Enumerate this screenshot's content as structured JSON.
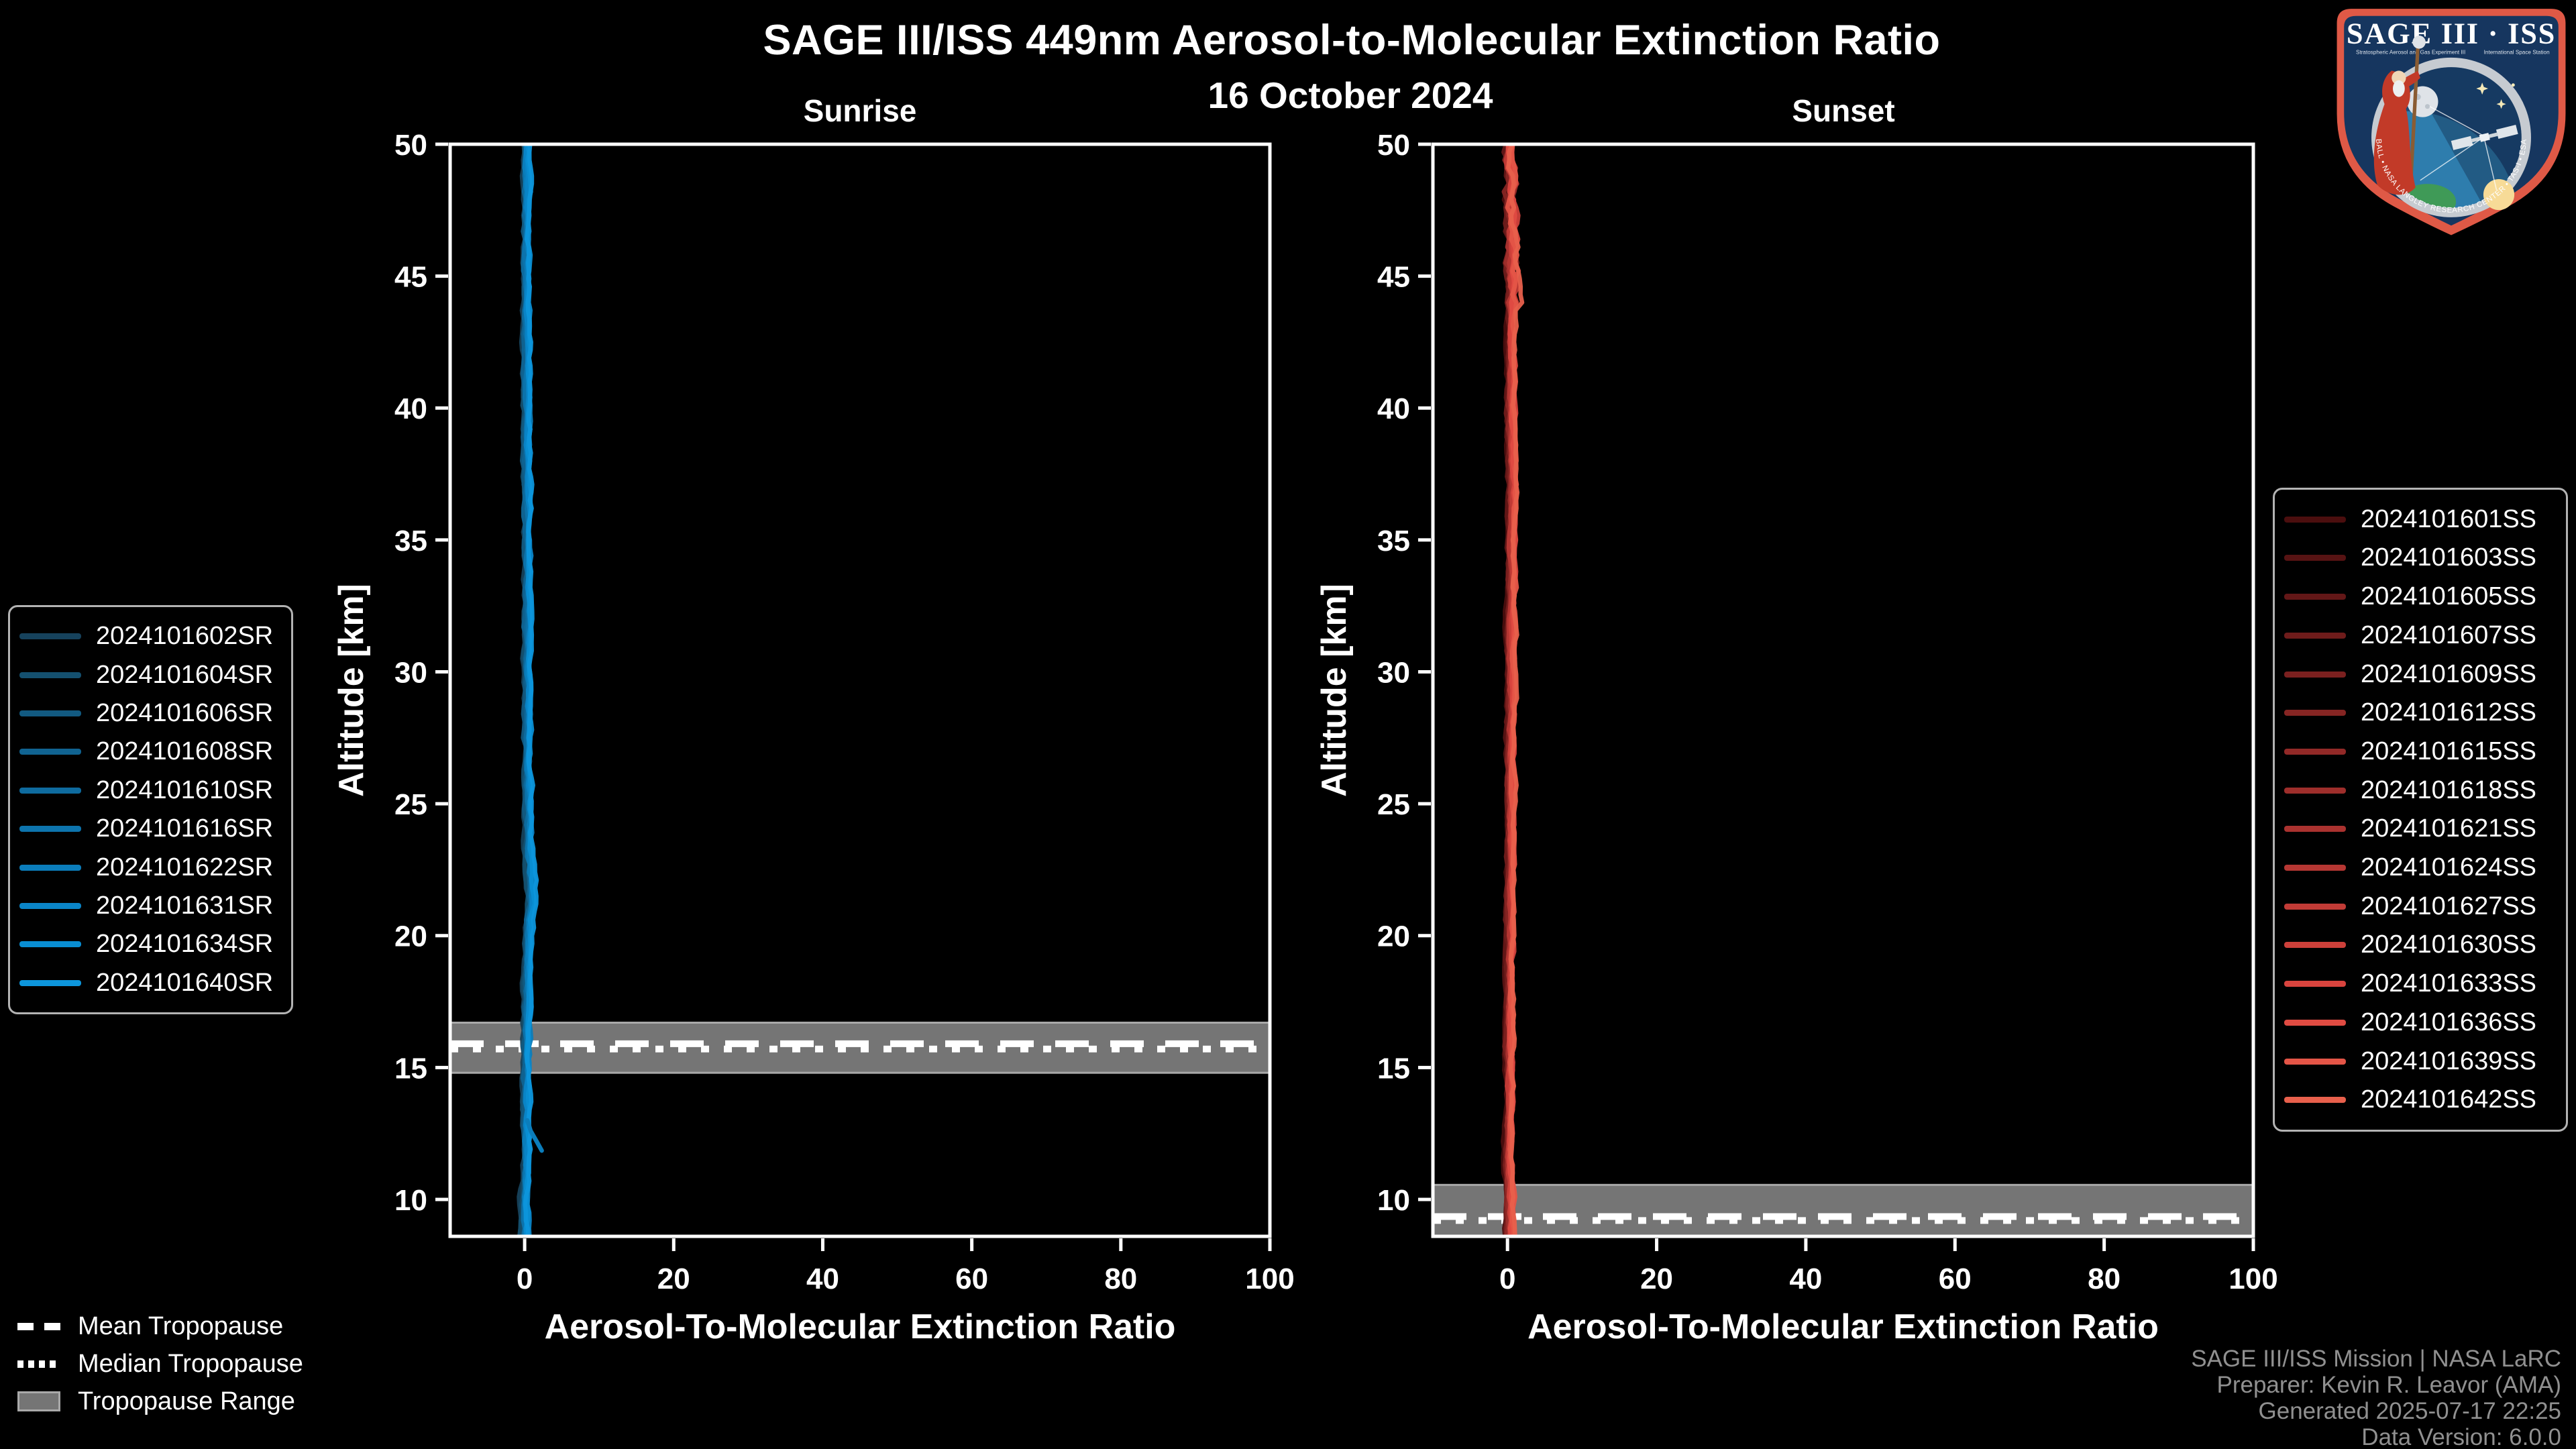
{
  "title": "SAGE III/ISS 449nm Aerosol-to-Molecular Extinction Ratio",
  "date": "16 October 2024",
  "attribution": {
    "line1": "SAGE III/ISS Mission | NASA LaRC",
    "line2": "Preparer: Kevin R. Leavor (AMA)",
    "line3": "Generated 2025-07-17 22:25",
    "line4": "Data Version: 6.0.0"
  },
  "tropopause_legend": [
    {
      "label": "Mean Tropopause",
      "style": "dashed"
    },
    {
      "label": "Median Tropopause",
      "style": "dotted"
    },
    {
      "label": "Tropopause Range",
      "style": "band"
    }
  ],
  "logo": {
    "title": "SAGE III · ISS",
    "subtitle_left": "Stratospheric Aerosol and Gas Experiment III",
    "subtitle_right": "International Space Station",
    "arc_text": "BALL • NASA LANGLEY RESEARCH CENTER • TAS-I • ESA",
    "border_color": "#df5946",
    "field_color": "#16365f"
  },
  "colors": {
    "background": "#000000",
    "text": "#ffffff",
    "muted_text": "#909090",
    "frame": "#ffffff",
    "band_fill": "#757575",
    "band_edge": "#a9a9a9",
    "legend_border": "#b3b3b3",
    "sunrise_bright": "#0d96dc",
    "sunset_bright": "#e8604c"
  },
  "chart_data": [
    {
      "type": "line",
      "panel_title": "Sunrise",
      "xlabel": "Aerosol-To-Molecular Extinction Ratio",
      "ylabel": "Altitude [km]",
      "xlim": [
        -10,
        100
      ],
      "ylim": [
        8.6,
        50
      ],
      "xticks": [
        0,
        20,
        40,
        60,
        80,
        100
      ],
      "yticks": [
        10,
        15,
        20,
        25,
        30,
        35,
        40,
        45,
        50
      ],
      "grid": false,
      "legend_position": "outside-left",
      "series": [
        {
          "name": "2024101602SR",
          "color": "#16425c"
        },
        {
          "name": "2024101604SR",
          "color": "#14506f"
        },
        {
          "name": "2024101606SR",
          "color": "#125a81"
        },
        {
          "name": "2024101608SR",
          "color": "#106391"
        },
        {
          "name": "2024101610SR",
          "color": "#0e6b9f"
        },
        {
          "name": "2024101616SR",
          "color": "#0d74ad"
        },
        {
          "name": "2024101622SR",
          "color": "#0b7dbb"
        },
        {
          "name": "2024101631SR",
          "color": "#0a85c8"
        },
        {
          "name": "2024101634SR",
          "color": "#098ed3"
        },
        {
          "name": "2024101640SR",
          "color": "#0d96dc"
        }
      ],
      "base_profile": {
        "altitude_km": [
          50,
          48,
          46,
          44,
          42,
          40,
          38,
          36,
          34,
          32,
          30,
          28,
          26,
          24,
          23,
          22,
          21.3,
          20.7,
          20,
          19,
          18,
          17,
          16,
          15,
          14,
          13,
          12.5,
          12,
          11,
          10.3,
          10,
          9.5,
          9,
          8.6
        ],
        "ratio": [
          0.2,
          0.2,
          0.25,
          0.25,
          0.3,
          0.3,
          0.3,
          0.35,
          0.35,
          0.4,
          0.4,
          0.45,
          0.45,
          0.5,
          0.55,
          0.8,
          0.9,
          0.6,
          0.45,
          0.35,
          0.3,
          0.25,
          0.25,
          0.2,
          0.2,
          0.25,
          0.3,
          0.25,
          0.2,
          0.0,
          -0.1,
          0.1,
          0.05,
          0.0
        ]
      },
      "branch_profile": {
        "series_index": 6,
        "altitude_km": [
          13.0,
          12.6,
          12.2,
          11.85
        ],
        "ratio": [
          0.35,
          0.8,
          1.6,
          2.3
        ]
      },
      "tropopause": {
        "mean_km": 15.9,
        "median_km": 15.7,
        "range_km": [
          14.8,
          16.7
        ]
      }
    },
    {
      "type": "line",
      "panel_title": "Sunset",
      "xlabel": "Aerosol-To-Molecular Extinction Ratio",
      "ylabel": "Altitude [km]",
      "xlim": [
        -10,
        100
      ],
      "ylim": [
        8.6,
        50
      ],
      "xticks": [
        0,
        20,
        40,
        60,
        80,
        100
      ],
      "yticks": [
        10,
        15,
        20,
        25,
        30,
        35,
        40,
        45,
        50
      ],
      "grid": false,
      "legend_position": "outside-right",
      "series": [
        {
          "name": "2024101601SS",
          "color": "#4b0e0e"
        },
        {
          "name": "2024101603SS",
          "color": "#571313"
        },
        {
          "name": "2024101605SS",
          "color": "#631717"
        },
        {
          "name": "2024101607SS",
          "color": "#6f1c1b"
        },
        {
          "name": "2024101609SS",
          "color": "#7b201f"
        },
        {
          "name": "2024101612SS",
          "color": "#862523"
        },
        {
          "name": "2024101615SS",
          "color": "#922927"
        },
        {
          "name": "2024101618SS",
          "color": "#9e2e2b"
        },
        {
          "name": "2024101621SS",
          "color": "#aa322f"
        },
        {
          "name": "2024101624SS",
          "color": "#b63733"
        },
        {
          "name": "2024101627SS",
          "color": "#c13b36"
        },
        {
          "name": "2024101630SS",
          "color": "#cd403a"
        },
        {
          "name": "2024101633SS",
          "color": "#d9443e"
        },
        {
          "name": "2024101636SS",
          "color": "#e04b42"
        },
        {
          "name": "2024101639SS",
          "color": "#e45547"
        },
        {
          "name": "2024101642SS",
          "color": "#e8604c"
        }
      ],
      "base_profile": {
        "altitude_km": [
          50,
          49.2,
          48.6,
          48.2,
          47.5,
          46.5,
          45.5,
          44.5,
          43.5,
          42,
          40,
          38,
          37,
          36,
          34,
          32,
          30,
          28,
          26,
          24,
          22,
          20,
          18,
          16,
          14,
          12,
          11,
          10,
          9.2,
          8.6
        ],
        "ratio": [
          0.3,
          0.4,
          1.0,
          0.5,
          0.45,
          0.5,
          0.55,
          0.7,
          0.5,
          0.45,
          0.45,
          0.5,
          0.65,
          0.55,
          0.5,
          0.45,
          0.45,
          0.4,
          0.4,
          0.35,
          0.3,
          0.3,
          0.3,
          0.25,
          0.25,
          0.2,
          0.25,
          0.3,
          0.35,
          0.3
        ]
      },
      "tropopause": {
        "mean_km": 9.35,
        "median_km": 9.2,
        "range_km": [
          8.6,
          10.55
        ]
      }
    }
  ]
}
